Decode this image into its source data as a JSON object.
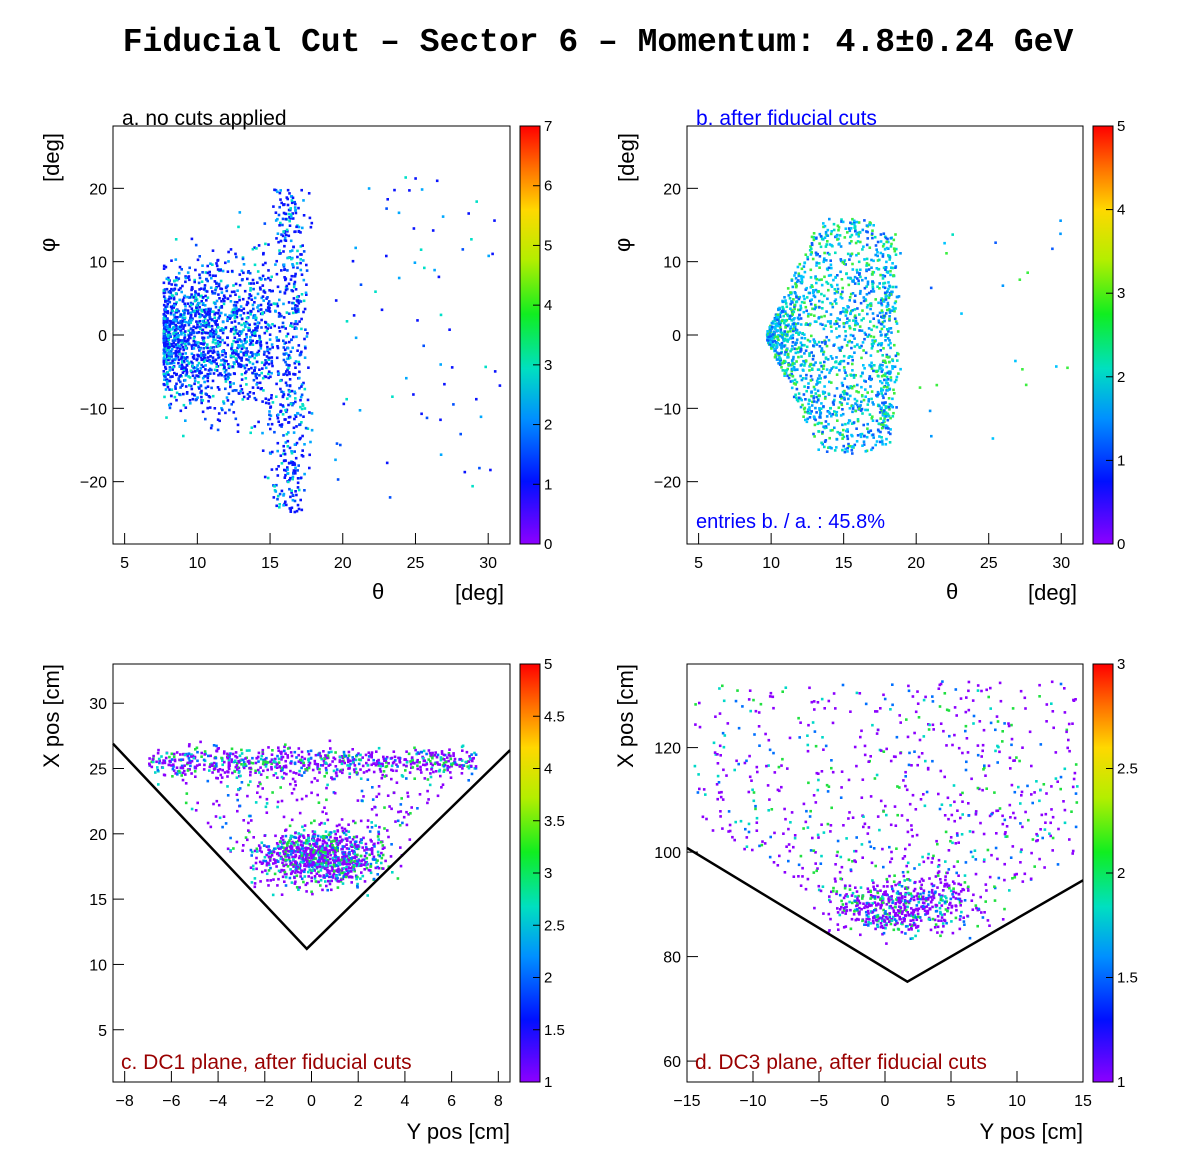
{
  "title": "Fiducial Cut – Sector 6 – Momentum: 4.8±0.24 GeV",
  "chart_data": [
    {
      "id": "a",
      "type": "heatmap",
      "annotation": "a. no cuts applied",
      "annotation_color": "#000000",
      "xlabel_symbol": "θ",
      "xlabel_unit": "[deg]",
      "ylabel_symbol": "φ",
      "ylabel_unit": "[deg]",
      "xlim": [
        4.2,
        31.5
      ],
      "ylim": [
        -28.5,
        28.5
      ],
      "xticks": [
        5,
        10,
        15,
        20,
        25,
        30
      ],
      "yticks": [
        -20,
        -10,
        0,
        10,
        20
      ],
      "zlim": [
        0,
        7
      ],
      "zticks": [
        "0",
        "1",
        "2",
        "3",
        "4",
        "5",
        "6",
        "7"
      ],
      "distribution": "all sectors filled: dense band theta 8-14 deg, phi -18..20; second band theta 16-19 deg, phi -24..20; sparse points out to theta 31"
    },
    {
      "id": "b",
      "type": "heatmap",
      "annotation": "b. after fiducial cuts",
      "annotation_color": "#0000ff",
      "note": "entries b. / a. : 45.8%",
      "xlabel_symbol": "θ",
      "xlabel_unit": "[deg]",
      "ylabel_symbol": "φ",
      "ylabel_unit": "[deg]",
      "xlim": [
        4.2,
        31.5
      ],
      "ylim": [
        -28.5,
        28.5
      ],
      "xticks": [
        5,
        10,
        15,
        20,
        25,
        30
      ],
      "yticks": [
        -20,
        -10,
        0,
        10,
        20
      ],
      "zlim": [
        0,
        5
      ],
      "zticks": [
        "0",
        "1",
        "2",
        "3",
        "4",
        "5"
      ],
      "distribution": "triangular acceptance with apex at theta 9.5 deg, phi 0; band at theta 17-19 deg, phi -15..14"
    },
    {
      "id": "c",
      "type": "heatmap",
      "annotation": "c. DC1 plane, after fiducial cuts",
      "annotation_color": "#990000",
      "xlabel": "Y pos [cm]",
      "ylabel": "X pos [cm]",
      "xlim": [
        -8.5,
        8.5
      ],
      "ylim": [
        1,
        33
      ],
      "xticks": [
        -8,
        -6,
        -4,
        -2,
        0,
        2,
        4,
        6,
        8
      ],
      "yticks": [
        5,
        10,
        15,
        20,
        25,
        30
      ],
      "zlim": [
        1,
        5
      ],
      "zticks": [
        "1",
        "1.5",
        "2",
        "2.5",
        "3",
        "3.5",
        "4",
        "4.5",
        "5"
      ],
      "cut_line": [
        [
          -8.5,
          26.9
        ],
        [
          -0.2,
          11.2
        ],
        [
          8.5,
          26.4
        ]
      ],
      "distribution": "dense blob near Y -2..3, X 16-21 cm; band at X 25-27 cm across Y -7..7"
    },
    {
      "id": "d",
      "type": "heatmap",
      "annotation": "d. DC3 plane, after fiducial cuts",
      "annotation_color": "#990000",
      "xlabel": "Y pos [cm]",
      "ylabel": "X pos [cm]",
      "xlim": [
        -15,
        15
      ],
      "ylim": [
        56,
        136
      ],
      "xticks": [
        -15,
        -10,
        -5,
        0,
        5,
        10,
        15
      ],
      "yticks": [
        60,
        80,
        100,
        120
      ],
      "zlim": [
        1,
        3
      ],
      "zticks": [
        "1",
        "1.5",
        "2",
        "2.5",
        "3"
      ],
      "cut_line": [
        [
          -15,
          100.8
        ],
        [
          1.7,
          75.2
        ],
        [
          15,
          94.6
        ]
      ],
      "distribution": "dense region near Y -3..5, X 84-96 cm; sparse points filling X 95-133 cm"
    }
  ]
}
